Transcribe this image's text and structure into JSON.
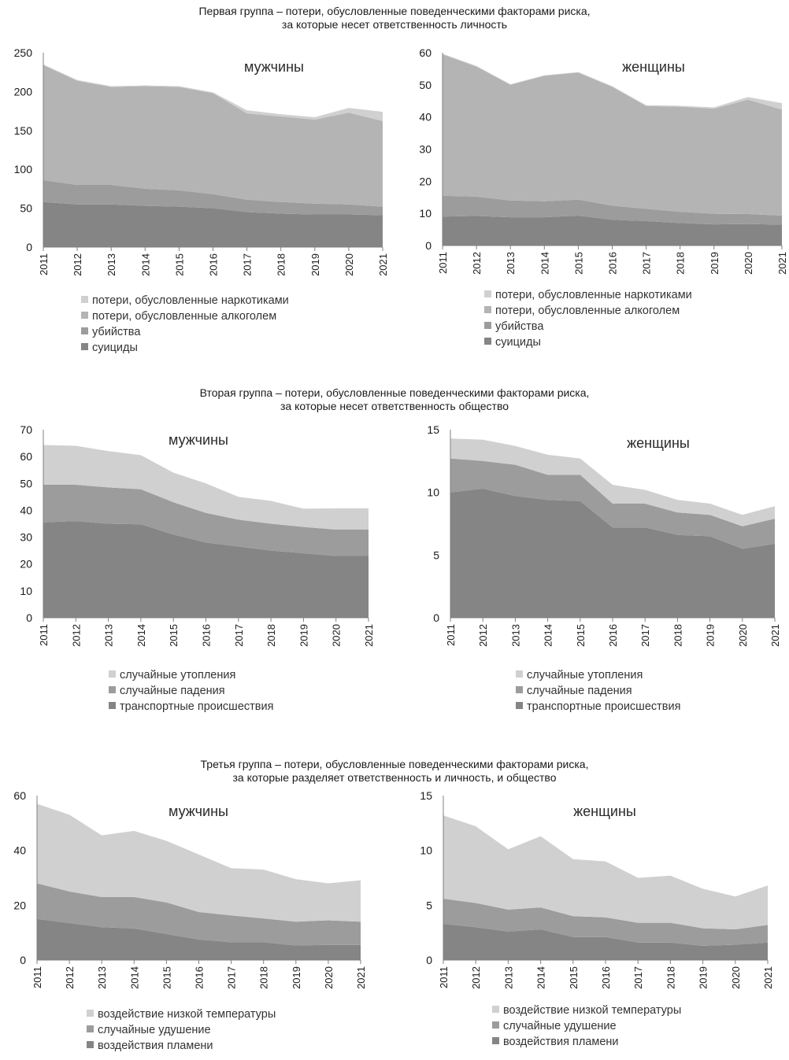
{
  "groups": [
    {
      "title_line1": "Первая группа – потери, обусловленные поведенческими факторами риска,",
      "title_line2": "за которые несет ответственность личность"
    },
    {
      "title_line1": "Вторая группа – потери, обусловленные поведенческими факторами риска,",
      "title_line2": "за которые несет ответственность общество"
    },
    {
      "title_line1": "Третья группа – потери, обусловленные поведенческими факторами риска,",
      "title_line2": "за которые разделяет ответственность и личность, и общество"
    }
  ],
  "colors": {
    "darkest": "#858585",
    "dark": "#9c9c9c",
    "mid": "#b4b4b4",
    "light": "#d0d0d0"
  },
  "chart_data": [
    {
      "type": "area",
      "stacked": true,
      "group": 1,
      "title": "мужчины",
      "x": [
        2011,
        2012,
        2013,
        2014,
        2015,
        2016,
        2017,
        2018,
        2019,
        2020,
        2021
      ],
      "ylim": [
        0,
        250
      ],
      "yticks": [
        0,
        50,
        100,
        150,
        200,
        250
      ],
      "grid": false,
      "legend_position": "bottom",
      "series": [
        {
          "name": "суициды",
          "color": "#858585",
          "values": [
            58,
            55,
            55,
            53,
            52,
            50,
            45,
            43,
            42,
            42,
            41
          ]
        },
        {
          "name": "убийства",
          "color": "#9c9c9c",
          "values": [
            28,
            25,
            25,
            22,
            21,
            18,
            16,
            15,
            14,
            13,
            11
          ]
        },
        {
          "name": "потери, обусловленные алкоголем",
          "color": "#b4b4b4",
          "values": [
            148,
            134,
            126,
            132,
            133,
            130,
            111,
            110,
            108,
            118,
            110
          ]
        },
        {
          "name": "потери, обусловленные наркотиками",
          "color": "#d0d0d0",
          "values": [
            1,
            1,
            1,
            1,
            1,
            1,
            4,
            3,
            3,
            6,
            12
          ]
        }
      ]
    },
    {
      "type": "area",
      "stacked": true,
      "group": 1,
      "title": "женщины",
      "x": [
        2011,
        2012,
        2013,
        2014,
        2015,
        2016,
        2017,
        2018,
        2019,
        2020,
        2021
      ],
      "ylim": [
        0,
        60
      ],
      "yticks": [
        0,
        10,
        20,
        30,
        40,
        50,
        60
      ],
      "grid": false,
      "legend_position": "bottom",
      "series": [
        {
          "name": "суициды",
          "color": "#858585",
          "values": [
            9,
            9.2,
            8.8,
            8.8,
            9.3,
            8,
            7.6,
            7,
            6.6,
            6.7,
            6.5
          ]
        },
        {
          "name": "убийства",
          "color": "#9c9c9c",
          "values": [
            6.5,
            6,
            5.2,
            5,
            5,
            4.4,
            3.8,
            3.5,
            3.3,
            3.1,
            2.8
          ]
        },
        {
          "name": "потери, обусловленные алкоголем",
          "color": "#b4b4b4",
          "values": [
            44,
            40.5,
            36,
            39,
            39.5,
            37,
            32,
            32.7,
            32.7,
            35.6,
            33
          ]
        },
        {
          "name": "потери, обусловленные наркотиками",
          "color": "#d0d0d0",
          "values": [
            0.2,
            0.2,
            0.2,
            0.2,
            0.2,
            0.2,
            0.3,
            0.3,
            0.4,
            0.8,
            2
          ]
        }
      ]
    },
    {
      "type": "area",
      "stacked": true,
      "group": 2,
      "title": "мужчины",
      "x": [
        2011,
        2012,
        2013,
        2014,
        2015,
        2016,
        2017,
        2018,
        2019,
        2020,
        2021
      ],
      "ylim": [
        0,
        70
      ],
      "yticks": [
        0,
        10,
        20,
        30,
        40,
        50,
        60,
        70
      ],
      "grid": false,
      "legend_position": "bottom",
      "series": [
        {
          "name": "транспортные происшествия",
          "color": "#858585",
          "values": [
            35.5,
            36,
            35,
            34.8,
            31,
            28,
            26.5,
            25,
            24,
            23,
            23
          ]
        },
        {
          "name": "случайные падения",
          "color": "#9c9c9c",
          "values": [
            14,
            13.5,
            13.5,
            13,
            12,
            11,
            10,
            10,
            9.8,
            9.8,
            9.8
          ]
        },
        {
          "name": "случайные утопления",
          "color": "#d0d0d0",
          "values": [
            14.8,
            14.5,
            13.5,
            12.7,
            11,
            11,
            8.5,
            8.5,
            6.8,
            7.9,
            7.9
          ]
        }
      ]
    },
    {
      "type": "area",
      "stacked": true,
      "group": 2,
      "title": "женщины",
      "x": [
        2011,
        2012,
        2013,
        2014,
        2015,
        2016,
        2017,
        2018,
        2019,
        2020,
        2021
      ],
      "ylim": [
        0,
        15
      ],
      "yticks": [
        0,
        5,
        10,
        15
      ],
      "grid": false,
      "legend_position": "bottom",
      "series": [
        {
          "name": "транспортные происшествия",
          "color": "#858585",
          "values": [
            10,
            10.3,
            9.7,
            9.4,
            9.3,
            7.2,
            7.2,
            6.6,
            6.5,
            5.5,
            5.9
          ]
        },
        {
          "name": "случайные падения",
          "color": "#9c9c9c",
          "values": [
            2.7,
            2.2,
            2.5,
            2,
            2.1,
            1.9,
            1.9,
            1.8,
            1.7,
            1.8,
            2
          ]
        },
        {
          "name": "случайные утопления",
          "color": "#d0d0d0",
          "values": [
            1.6,
            1.7,
            1.5,
            1.6,
            1.3,
            1.5,
            1.1,
            1,
            0.9,
            0.9,
            1
          ]
        }
      ]
    },
    {
      "type": "area",
      "stacked": true,
      "group": 3,
      "title": "мужчины",
      "x": [
        2011,
        2012,
        2013,
        2014,
        2015,
        2016,
        2017,
        2018,
        2019,
        2020,
        2021
      ],
      "ylim": [
        0,
        60
      ],
      "yticks": [
        0,
        20,
        40,
        60
      ],
      "grid": false,
      "legend_position": "bottom",
      "series": [
        {
          "name": "воздействия пламени",
          "color": "#858585",
          "values": [
            15,
            13.5,
            12,
            11.5,
            9.5,
            7.5,
            6.5,
            6.5,
            5.3,
            5.5,
            5.5
          ]
        },
        {
          "name": "случайные удушение",
          "color": "#9c9c9c",
          "values": [
            13,
            11.5,
            11,
            11.5,
            11.5,
            10,
            9.8,
            8.7,
            8.7,
            9,
            8.5
          ]
        },
        {
          "name": "воздействие низкой температуры",
          "color": "#d0d0d0",
          "values": [
            29,
            28,
            22.5,
            24.1,
            22.5,
            21,
            17.2,
            17.8,
            15.5,
            13.5,
            15.1
          ]
        }
      ]
    },
    {
      "type": "area",
      "stacked": true,
      "group": 3,
      "title": "женщины",
      "x": [
        2011,
        2012,
        2013,
        2014,
        2015,
        2016,
        2017,
        2018,
        2019,
        2020,
        2021
      ],
      "ylim": [
        0,
        15
      ],
      "yticks": [
        0,
        5,
        10,
        15
      ],
      "grid": false,
      "legend_position": "bottom",
      "series": [
        {
          "name": "воздействия пламени",
          "color": "#858585",
          "values": [
            3.3,
            3,
            2.6,
            2.8,
            2.1,
            2.1,
            1.6,
            1.6,
            1.3,
            1.4,
            1.6
          ]
        },
        {
          "name": "случайные удушение",
          "color": "#9c9c9c",
          "values": [
            2.3,
            2.2,
            2,
            2,
            1.9,
            1.8,
            1.8,
            1.8,
            1.6,
            1.4,
            1.6
          ]
        },
        {
          "name": "воздействие низкой температуры",
          "color": "#d0d0d0",
          "values": [
            7.6,
            7,
            5.5,
            6.5,
            5.2,
            5.1,
            4.1,
            4.3,
            3.6,
            3,
            3.6
          ]
        }
      ]
    }
  ]
}
